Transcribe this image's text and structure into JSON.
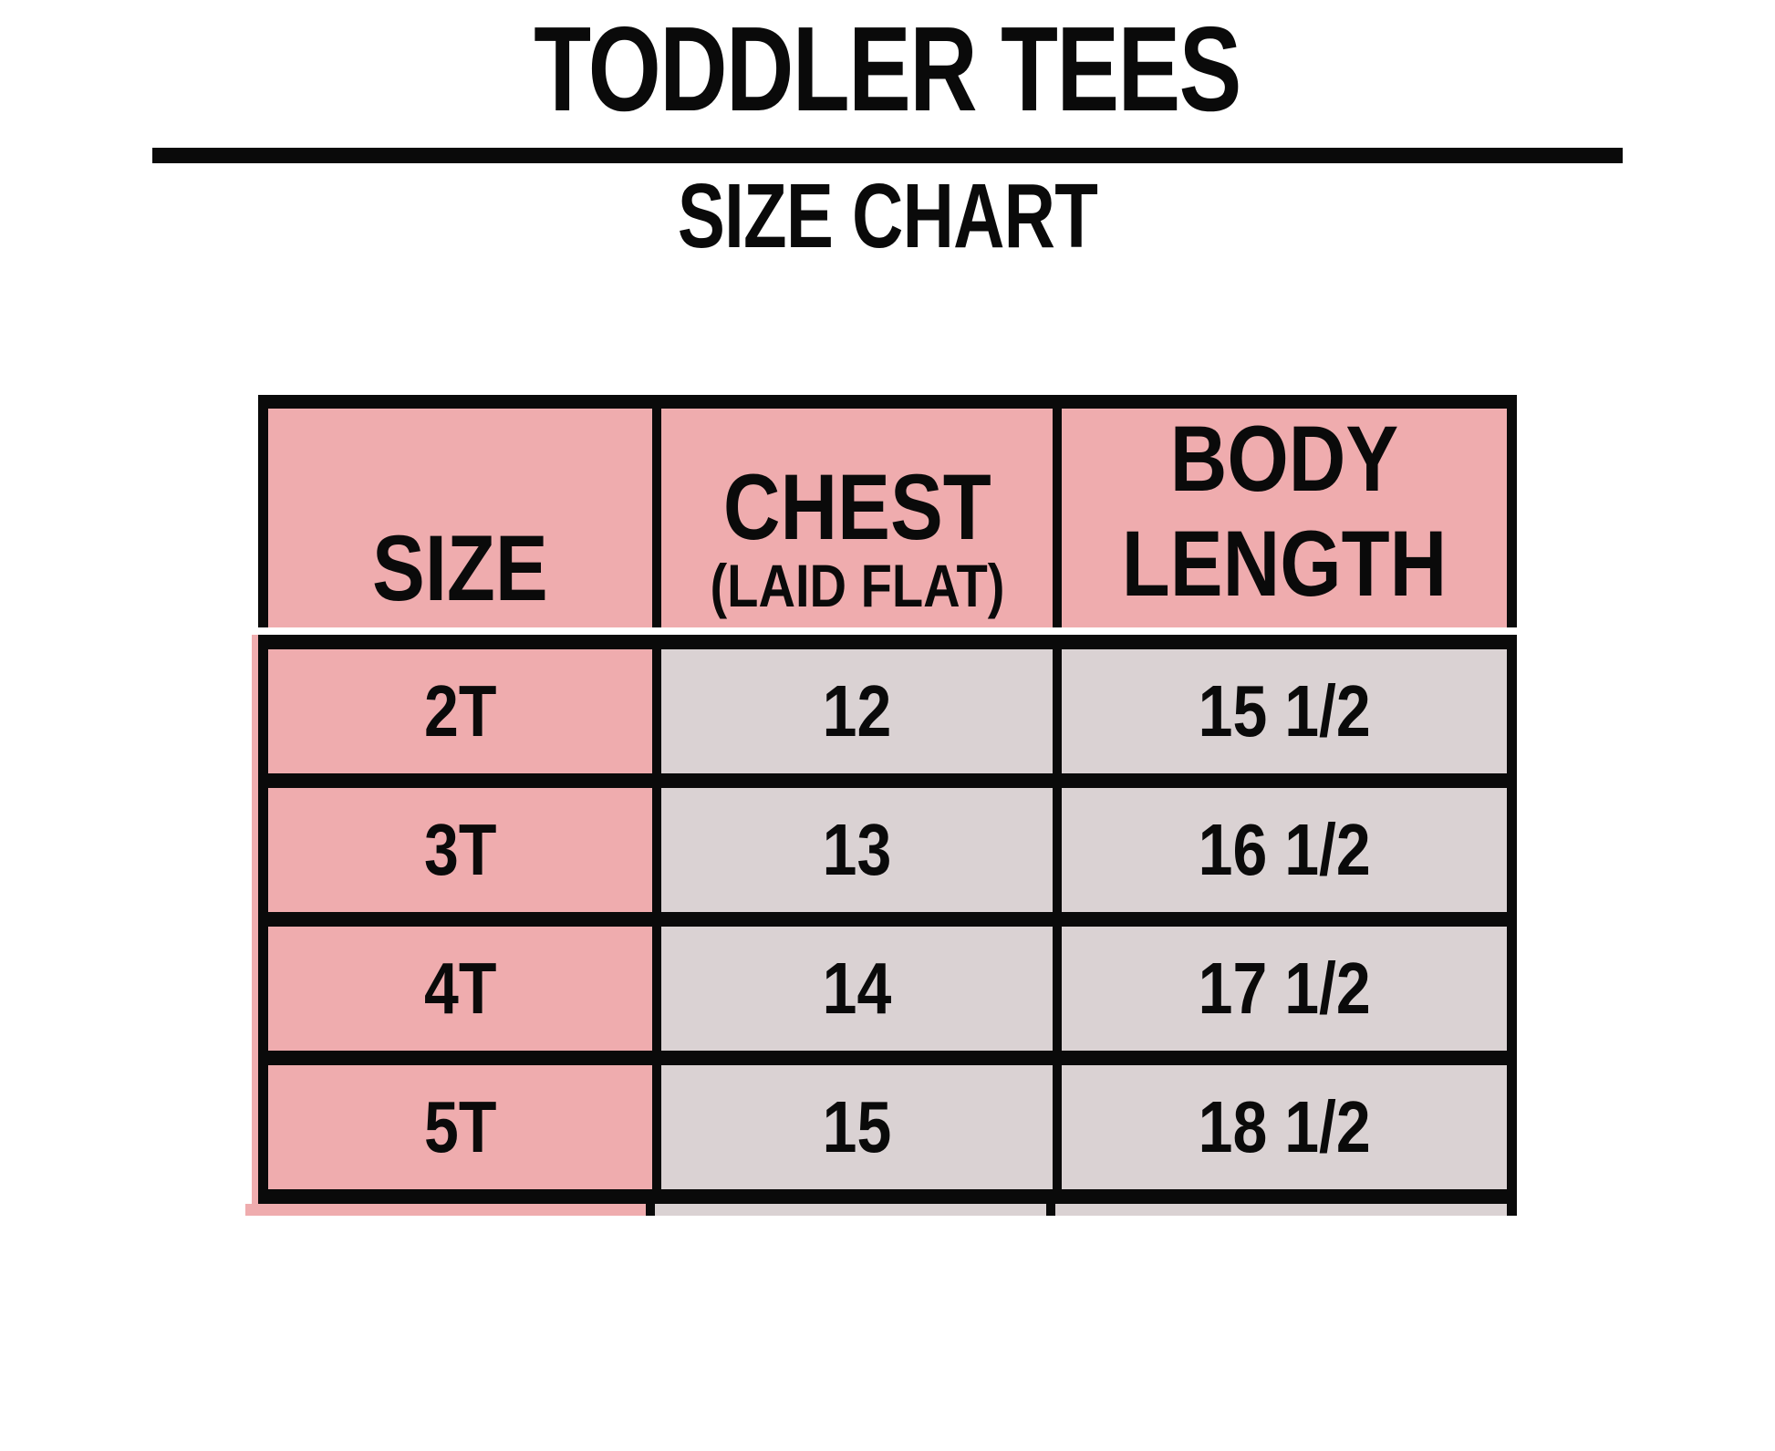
{
  "title": "TODDLER TEES",
  "subtitle": "SIZE CHART",
  "colors": {
    "pink": "#efacae",
    "gray": "#dad2d3",
    "ink": "#0a0a0a",
    "bg": "#ffffff"
  },
  "table": {
    "headers": {
      "size": "SIZE",
      "chest": "CHEST",
      "chest_sub": "(LAID FLAT)",
      "body_length": "BODY LENGTH"
    },
    "rows": [
      {
        "size": "2T",
        "chest": "12",
        "body_length": "15 1/2"
      },
      {
        "size": "3T",
        "chest": "13",
        "body_length": "16 1/2"
      },
      {
        "size": "4T",
        "chest": "14",
        "body_length": "17 1/2"
      },
      {
        "size": "5T",
        "chest": "15",
        "body_length": "18 1/2"
      }
    ]
  },
  "chart_data": {
    "type": "table",
    "title": "TODDLER TEES",
    "subtitle": "SIZE CHART",
    "columns": [
      "SIZE",
      "CHEST (LAID FLAT)",
      "BODY LENGTH"
    ],
    "rows": [
      [
        "2T",
        "12",
        "15 1/2"
      ],
      [
        "3T",
        "13",
        "16 1/2"
      ],
      [
        "4T",
        "14",
        "17 1/2"
      ],
      [
        "5T",
        "15",
        "18 1/2"
      ]
    ]
  }
}
